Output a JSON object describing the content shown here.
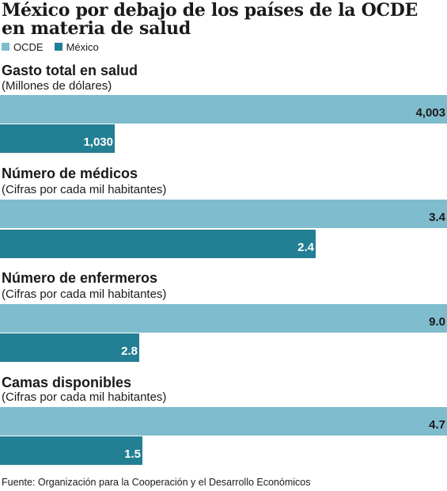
{
  "title": "México por debajo de los países de la OCDE en materia de salud",
  "legend": [
    {
      "label": "OCDE",
      "color": "#7fbccd"
    },
    {
      "label": "México",
      "color": "#237f93"
    }
  ],
  "source": "Fuente: Organización para la Cooperación y el Desarrollo Económicos",
  "colors": {
    "ocde": "#7fbccd",
    "mexico": "#237f93",
    "ocde_label": "#1a1a1a",
    "mexico_label": "#ffffff"
  },
  "chart_data": {
    "type": "bar",
    "orientation": "horizontal",
    "series_names": [
      "OCDE",
      "México"
    ],
    "groups": [
      {
        "title": "Gasto total en salud",
        "subtitle": "(Millones de dólares)",
        "values": [
          4003,
          1030
        ],
        "labels": [
          "4,003",
          "1,030"
        ]
      },
      {
        "title": "Número de médicos",
        "subtitle": "(Cifras por cada mil habitantes)",
        "values": [
          3.4,
          2.4
        ],
        "labels": [
          "3.4",
          "2.4"
        ]
      },
      {
        "title": "Número de enfermeros",
        "subtitle": "(Cifras por cada mil habitantes)",
        "values": [
          9.0,
          2.8
        ],
        "labels": [
          "9.0",
          "2.8"
        ]
      },
      {
        "title": "Camas disponibles",
        "subtitle": "(Cifras por cada mil habitantes)",
        "values": [
          4.7,
          1.5
        ],
        "labels": [
          "4.7",
          "1.5"
        ]
      }
    ]
  }
}
